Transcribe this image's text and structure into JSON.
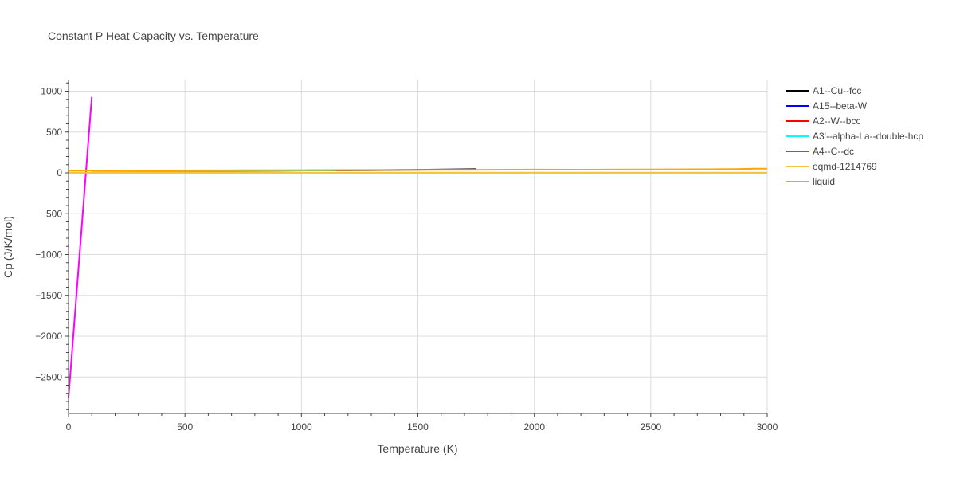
{
  "chart_data": {
    "type": "line",
    "title": "Constant P Heat Capacity vs. Temperature",
    "xlabel": "Temperature (K)",
    "ylabel": "Cp (J/K/mol)",
    "xlim": [
      0,
      3000
    ],
    "ylim": [
      -2950,
      1140
    ],
    "x_ticks": [
      0,
      500,
      1000,
      1500,
      2000,
      2500,
      3000
    ],
    "x_tick_labels": [
      "0",
      "500",
      "1000",
      "1500",
      "2000",
      "2500",
      "3000"
    ],
    "y_ticks": [
      1000,
      500,
      0,
      -500,
      -1000,
      -1500,
      -2000,
      -2500
    ],
    "y_tick_labels": [
      "1000",
      "500",
      "0",
      "−500",
      "−1000",
      "−1500",
      "−2000",
      "−2500"
    ],
    "grid": true,
    "legend_position": "right",
    "series": [
      {
        "name": "A1--Cu--fcc",
        "color": "#000000",
        "x": [
          100,
          300,
          500,
          700,
          900,
          1100,
          1300,
          1500,
          1750
        ],
        "y": [
          24,
          25,
          26,
          27,
          28,
          30,
          33,
          38,
          45
        ]
      },
      {
        "name": "A15--beta-W",
        "color": "#0000ff",
        "x": [
          100,
          1150
        ],
        "y": [
          26,
          30
        ]
      },
      {
        "name": "A2--W--bcc",
        "color": "#ff0000",
        "x": [
          100,
          1150
        ],
        "y": [
          25,
          29
        ]
      },
      {
        "name": "A3'--alpha-La--double-hcp",
        "color": "#00ffff",
        "x": [
          100,
          1150
        ],
        "y": [
          25,
          30
        ]
      },
      {
        "name": "A4--C--dc",
        "color": "#ff00ff",
        "x": [
          0,
          100
        ],
        "y": [
          -2750,
          930
        ]
      },
      {
        "name": "oqmd-1214769",
        "color": "#f5c342",
        "x": [
          0,
          3000
        ],
        "y": [
          2,
          2
        ]
      },
      {
        "name": "liquid",
        "color": "#ffa500",
        "x": [
          0,
          1150,
          1500,
          1800,
          2000,
          2200,
          2500,
          2700,
          2870,
          2950,
          3000
        ],
        "y": [
          27,
          34,
          37,
          38,
          40,
          39,
          42,
          44,
          46,
          51,
          52
        ]
      }
    ]
  }
}
